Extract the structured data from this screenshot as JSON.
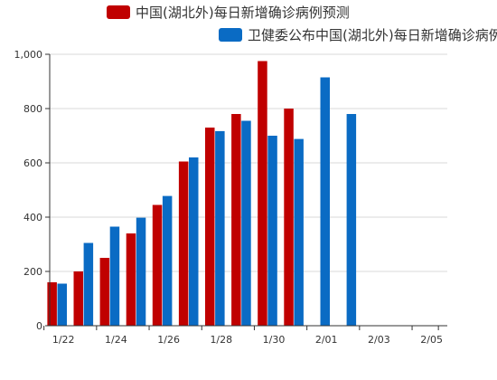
{
  "chart_data": {
    "type": "bar",
    "x_ticks": [
      "1/22",
      "1/24",
      "1/26",
      "1/28",
      "1/30",
      "2/01",
      "2/03",
      "2/05"
    ],
    "y_ticks": [
      "0",
      "200",
      "400",
      "600",
      "800",
      "1,000"
    ],
    "ylim": [
      0,
      1000
    ],
    "grid": true,
    "legend_position": "top",
    "categories": [
      "1/22",
      "1/23",
      "1/24",
      "1/25",
      "1/26",
      "1/27",
      "1/28",
      "1/29",
      "1/30",
      "1/31",
      "2/01",
      "2/02",
      "2/03",
      "2/04",
      "2/05"
    ],
    "series": [
      {
        "name": "中国(湖北外)每日新增确诊病例预测",
        "color": "#c00000",
        "values": [
          160,
          200,
          250,
          340,
          445,
          605,
          730,
          780,
          975,
          800,
          null,
          null,
          null,
          null,
          null
        ]
      },
      {
        "name": "卫健委公布中国(湖北外)每日新增确诊病例",
        "color": "#0a6bc4",
        "values": [
          155,
          305,
          365,
          398,
          478,
          620,
          717,
          755,
          700,
          688,
          915,
          780,
          null,
          null,
          null
        ]
      }
    ]
  }
}
